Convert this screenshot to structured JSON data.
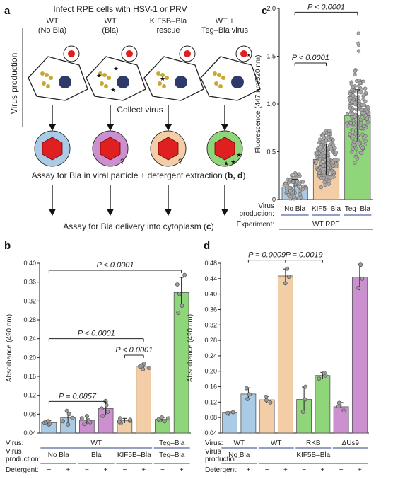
{
  "schematic": {
    "panel_letter": "a",
    "title": "Infect RPE cells with HSV-1 or PRV",
    "side_label": "Virus production",
    "conditions": [
      {
        "line1": "WT",
        "line2": "(No Bla)"
      },
      {
        "line1": "WT",
        "line2": "(Bla)"
      },
      {
        "line1": "KIF5B–Bla",
        "line2": "rescue"
      },
      {
        "line1": "WT +",
        "line2": "Teg–Bla virus"
      }
    ],
    "collect_label": "Collect virus",
    "assay1_prefix": "Assay for Bla in viral particle ± detergent extraction (",
    "assay1_refs": "b, d",
    "assay1_suffix": ")",
    "assay2_prefix": "Assay for Bla delivery into cytoplasm (",
    "assay2_ref": "c",
    "assay2_suffix": ")",
    "question_mark": "?",
    "colors": {
      "virion": "#e02020",
      "cell_fill": "#ffffff",
      "nucleus": "#2d3a6a",
      "kinesin": "#c8a832"
    },
    "particle_colors": [
      "#a9cbe6",
      "#cc8fcf",
      "#f2cda6",
      "#8fd67a"
    ]
  },
  "chart_data": [
    {
      "panel": "b",
      "type": "bar",
      "ylabel": "Absorbance (490 nm)",
      "ylim": [
        0.04,
        0.4
      ],
      "yticks": [
        "0.04",
        "0.08",
        "0.12",
        "0.16",
        "0.20",
        "0.24",
        "0.28",
        "0.32",
        "0.36",
        "0.40"
      ],
      "categories": [
        "No Bla −",
        "No Bla +",
        "Bla −",
        "Bla +",
        "KIF5B–Bla −",
        "KIF5B–Bla +",
        "Teg–Bla −",
        "Teg–Bla +"
      ],
      "values": [
        0.062,
        0.072,
        0.067,
        0.092,
        0.066,
        0.181,
        0.069,
        0.338
      ],
      "errors": [
        0.004,
        0.012,
        0.008,
        0.014,
        0.005,
        0.005,
        0.004,
        0.032
      ],
      "colors": [
        "#a9cbe6",
        "#a9cbe6",
        "#cc8fcf",
        "#cc8fcf",
        "#f2cda6",
        "#f2cda6",
        "#8fd67a",
        "#8fd67a"
      ],
      "points": [
        [
          0.058,
          0.06,
          0.062,
          0.063,
          0.065
        ],
        [
          0.058,
          0.065,
          0.072,
          0.08,
          0.087
        ],
        [
          0.059,
          0.063,
          0.067,
          0.071,
          0.076
        ],
        [
          0.076,
          0.085,
          0.092,
          0.099,
          0.108
        ],
        [
          0.061,
          0.064,
          0.066,
          0.068,
          0.071
        ],
        [
          0.175,
          0.178,
          0.181,
          0.184,
          0.187
        ],
        [
          0.065,
          0.067,
          0.069,
          0.071,
          0.073
        ],
        [
          0.295,
          0.31,
          0.335,
          0.355,
          0.375
        ]
      ],
      "annotations": [
        {
          "text": "P = 0.0857"
        },
        {
          "text": "P < 0.0001"
        },
        {
          "text": "P < 0.0001"
        },
        {
          "text": "P < 0.0001"
        }
      ],
      "footer": {
        "row1_label": "Virus:",
        "row2_label": "Virus production:",
        "row3_label": "Detergent:",
        "virus_groups": [
          {
            "text": "WT"
          },
          {
            "text": "Teg–Bla"
          }
        ],
        "production_groups": [
          {
            "text": "No Bla"
          },
          {
            "text": "Bla"
          },
          {
            "text": "KIF5B–Bla"
          },
          {
            "text": "Teg–Bla"
          }
        ],
        "detergent": [
          "−",
          "+",
          "−",
          "+",
          "−",
          "+",
          "−",
          "+"
        ]
      }
    },
    {
      "panel": "c",
      "type": "bar",
      "ylabel": "Fluorescence (447 nm/520 nm)",
      "ylim": [
        0,
        2.0
      ],
      "yticks": [
        "0",
        "0.5",
        "1.0",
        "1.5",
        "2.0"
      ],
      "categories": [
        "No Bla",
        "KIF5–Bla",
        "Teg–Bla"
      ],
      "values": [
        0.13,
        0.42,
        0.88
      ],
      "errors": [
        0.08,
        0.16,
        0.27
      ],
      "colors": [
        "#a9cbe6",
        "#f2cda6",
        "#8fd67a"
      ],
      "annotations": [
        {
          "text": "P < 0.0001"
        },
        {
          "text": "P < 0.0001"
        }
      ],
      "footer": {
        "row1_label": "Virus production:",
        "row2_label": "Experiment:",
        "experiment": "WT RPE"
      }
    },
    {
      "panel": "d",
      "type": "bar",
      "ylabel": "Absorbance (490 nm)",
      "ylim": [
        0.04,
        0.48
      ],
      "yticks": [
        "0.04",
        "0.08",
        "0.12",
        "0.16",
        "0.20",
        "0.24",
        "0.28",
        "0.32",
        "0.36",
        "0.40",
        "0.44",
        "0.48"
      ],
      "categories": [
        "WT/No Bla −",
        "WT/No Bla +",
        "WT/KIF5B −",
        "WT/KIF5B +",
        "RKB −",
        "RKB +",
        "ΔUs9 −",
        "ΔUs9 +"
      ],
      "values": [
        0.092,
        0.141,
        0.126,
        0.447,
        0.127,
        0.189,
        0.108,
        0.444
      ],
      "errors": [
        0.003,
        0.016,
        0.009,
        0.018,
        0.032,
        0.008,
        0.011,
        0.034
      ],
      "colors": [
        "#a9cbe6",
        "#a9cbe6",
        "#f2cda6",
        "#f2cda6",
        "#8fd67a",
        "#8fd67a",
        "#cc8fcf",
        "#cc8fcf"
      ],
      "points": [
        [
          0.09,
          0.092,
          0.094
        ],
        [
          0.128,
          0.14,
          0.156
        ],
        [
          0.119,
          0.125,
          0.134
        ],
        [
          0.428,
          0.445,
          0.466
        ],
        [
          0.095,
          0.127,
          0.16
        ],
        [
          0.181,
          0.189,
          0.196
        ],
        [
          0.098,
          0.109,
          0.118
        ],
        [
          0.416,
          0.44,
          0.476
        ]
      ],
      "annotations": [
        {
          "text": "P = 0.0009"
        },
        {
          "text": "P = 0.0019"
        }
      ],
      "footer": {
        "row1_label": "Virus:",
        "row2_label": "Virus production:",
        "row3_label": "Detergent:",
        "virus_groups": [
          {
            "text": "WT"
          },
          {
            "text": "WT"
          },
          {
            "text": "RKB"
          },
          {
            "text": "ΔUs9"
          }
        ],
        "production_groups": [
          {
            "text": "No Bla"
          },
          {
            "text": "KIF5B–Bla"
          }
        ],
        "detergent": [
          "−",
          "+",
          "−",
          "+",
          "−",
          "+",
          "−",
          "+"
        ]
      }
    }
  ]
}
